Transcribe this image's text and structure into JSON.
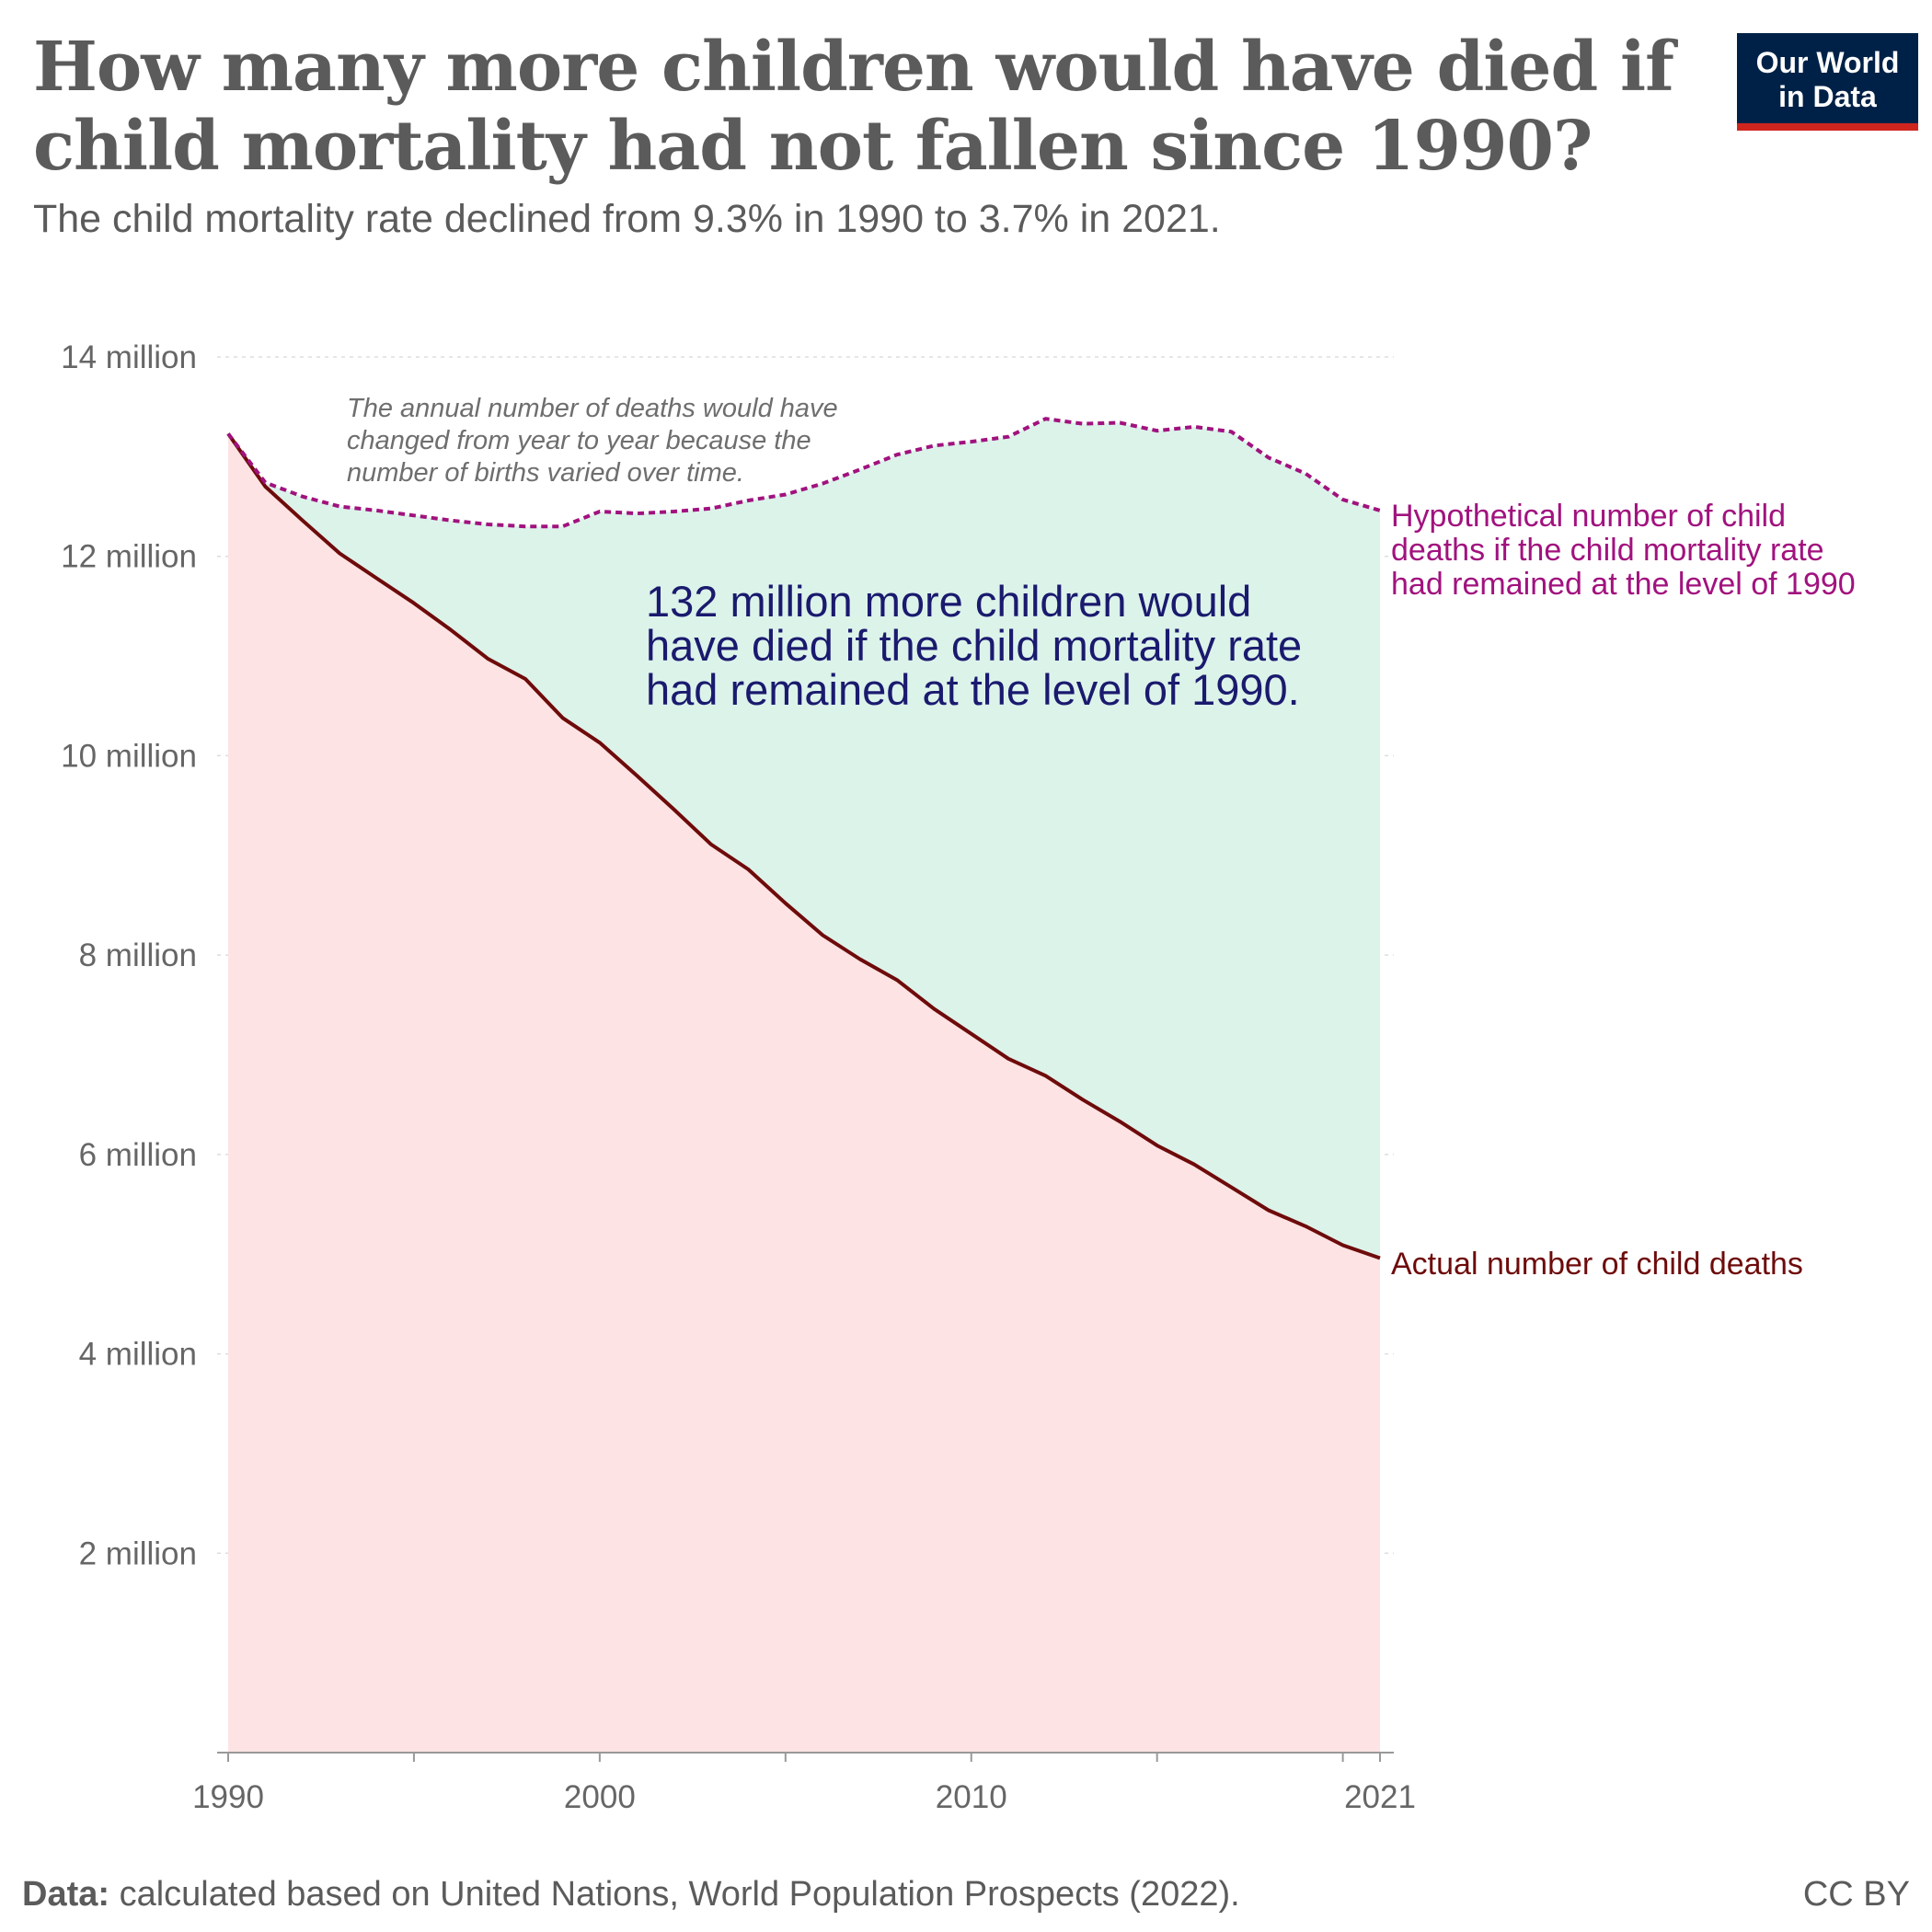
{
  "header": {
    "title": "How many more children would have died if child mortality had not fallen since 1990?",
    "subtitle": "The child mortality rate declined from 9.3% in 1990 to 3.7% in 2021."
  },
  "logo": {
    "line1": "Our World",
    "line2": "in Data"
  },
  "footer": {
    "source_label": "Data:",
    "source_text": "calculated based on United Nations, World Population Prospects (2022).",
    "license": "CC BY"
  },
  "colors": {
    "actual_line": "#6e0b0b",
    "actual_fill": "#fde3e3",
    "hypothetical_line": "#a1127e",
    "gap_fill": "#dcf3ea",
    "annotation_text": "#1a1a6e"
  },
  "chart_data": {
    "type": "area",
    "xlim": [
      1990,
      2021
    ],
    "ylim": [
      0,
      14000000
    ],
    "grid": true,
    "x_ticks": [
      {
        "value": 1990,
        "label": "1990"
      },
      {
        "value": 2000,
        "label": "2000"
      },
      {
        "value": 2010,
        "label": "2010"
      },
      {
        "value": 2021,
        "label": "2021"
      }
    ],
    "y_ticks": [
      {
        "value": 2000000,
        "label": "2 million"
      },
      {
        "value": 4000000,
        "label": "4 million"
      },
      {
        "value": 6000000,
        "label": "6 million"
      },
      {
        "value": 8000000,
        "label": "8 million"
      },
      {
        "value": 10000000,
        "label": "10 million"
      },
      {
        "value": 12000000,
        "label": "12 million"
      },
      {
        "value": 14000000,
        "label": "14 million"
      }
    ],
    "x": [
      1990,
      1991,
      1992,
      1993,
      1994,
      1995,
      1996,
      1997,
      1998,
      1999,
      2000,
      2001,
      2002,
      2003,
      2004,
      2005,
      2006,
      2007,
      2008,
      2009,
      2010,
      2011,
      2012,
      2013,
      2014,
      2015,
      2016,
      2017,
      2018,
      2019,
      2020,
      2021
    ],
    "series": [
      {
        "name": "Hypothetical number of child deaths if the child mortality rate had remained at the level of 1990",
        "style": "dashed",
        "values": [
          13230000,
          12740000,
          12600000,
          12500000,
          12460000,
          12410000,
          12360000,
          12320000,
          12300000,
          12300000,
          12450000,
          12430000,
          12450000,
          12480000,
          12560000,
          12620000,
          12730000,
          12870000,
          13020000,
          13110000,
          13150000,
          13200000,
          13380000,
          13330000,
          13340000,
          13260000,
          13300000,
          13250000,
          12990000,
          12830000,
          12570000,
          12460000
        ]
      },
      {
        "name": "Actual number of child deaths",
        "style": "solid",
        "values": [
          13230000,
          12700000,
          12360000,
          12030000,
          11780000,
          11530000,
          11260000,
          10970000,
          10770000,
          10380000,
          10130000,
          9800000,
          9460000,
          9110000,
          8860000,
          8520000,
          8200000,
          7960000,
          7750000,
          7460000,
          7210000,
          6960000,
          6790000,
          6550000,
          6330000,
          6090000,
          5900000,
          5670000,
          5440000,
          5280000,
          5090000,
          4960000
        ]
      }
    ],
    "annotations": {
      "note": [
        "The annual number of deaths would have",
        "changed from year to year because the",
        "number of births varied over time."
      ],
      "highlight": [
        "132 million more children would",
        "have died if the child mortality rate",
        "had remained at the level of 1990."
      ],
      "hypothetical_label": [
        "Hypothetical number of child",
        "deaths if the child mortality rate",
        "had remained at the level of 1990"
      ],
      "actual_label": [
        "Actual number of child deaths"
      ]
    }
  }
}
